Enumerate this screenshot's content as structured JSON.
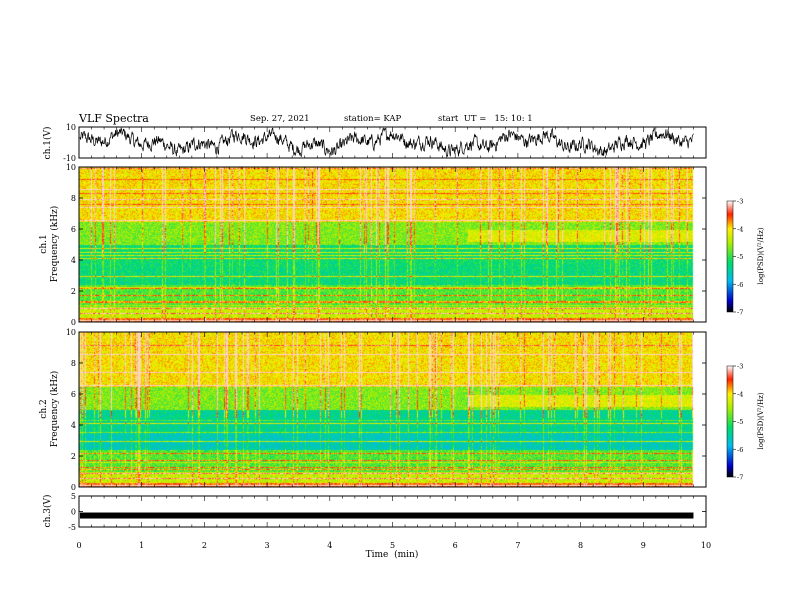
{
  "header": {
    "title": "VLF Spectra",
    "date": "Sep. 27, 2021",
    "station": "station= KAP",
    "start_time": "start  UT =   15: 10: 1"
  },
  "chart_data": [
    {
      "id": "ch1-waveform",
      "type": "line",
      "ylabel": "ch.1(V)",
      "ylim": [
        -10,
        10
      ],
      "yticks": [
        "10",
        "-10"
      ],
      "xlim": [
        0,
        10
      ]
    },
    {
      "id": "ch1-spectrogram",
      "type": "heatmap",
      "ylabel_channel": "ch.1",
      "ylabel": "Frequency  (kHz)",
      "ylim": [
        0,
        10
      ],
      "yticks": [
        "0",
        "2",
        "4",
        "6",
        "8",
        "10"
      ],
      "data_extent_min": 9.8,
      "colorbar": {
        "label": "log(PSD)(V²/Hz)",
        "range": [
          -7,
          -3
        ],
        "ticks": [
          "-3",
          "-4",
          "-5",
          "-6",
          "-7"
        ]
      }
    },
    {
      "id": "ch2-spectrogram",
      "type": "heatmap",
      "ylabel_channel": "ch.2",
      "ylabel": "Frequency  (kHz)",
      "ylim": [
        0,
        10
      ],
      "yticks": [
        "0",
        "2",
        "4",
        "6",
        "8",
        "10"
      ],
      "data_extent_min": 9.8,
      "colorbar": {
        "label": "log(PSD)(V²/Hz)",
        "range": [
          -7,
          -3
        ],
        "ticks": [
          "-3",
          "-4",
          "-5",
          "-6",
          "-7"
        ]
      }
    },
    {
      "id": "ch3-waveform",
      "type": "line",
      "ylabel": "ch.3(V)",
      "ylim": [
        -5,
        5
      ],
      "yticks": [
        "5",
        "0",
        "-5"
      ],
      "approx_level_v": -1.3
    }
  ],
  "xaxis": {
    "label": "Time  (min)",
    "range": [
      0,
      10
    ],
    "ticks": [
      "0",
      "1",
      "2",
      "3",
      "4",
      "5",
      "6",
      "7",
      "8",
      "9",
      "10"
    ]
  }
}
